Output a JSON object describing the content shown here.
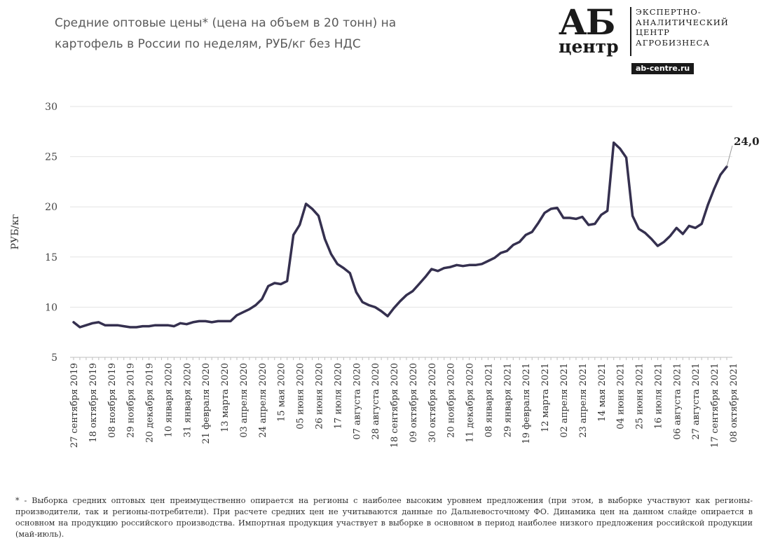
{
  "title": {
    "line1": "Средние оптовые цены* (цена на объем в 20 тонн) на",
    "line2": "картофель в России по неделям, РУБ/кг без НДС"
  },
  "logo": {
    "ab": "АБ",
    "centr": "центр",
    "line1": "ЭКСПЕРТНО-",
    "line2": "АНАЛИТИЧЕСКИЙ",
    "line3": "ЦЕНТР",
    "line4": "АГРОБИЗНЕСА",
    "url": "ab-centre.ru"
  },
  "footnote": "* - Выборка средних оптовых цен преимущественно опирается на регионы с наиболее высоким уровнем предложения (при этом, в выборке участвуют как регионы-производители, так и регионы-потребители). При расчете средних цен не учитываются данные по Дальневосточному ФО. Динамика цен на данном слайде опирается в основном на продукцию российского производства. Импортная продукция участвует в выборке в основном в период наиболее низкого предложения российской продукции (май-июль).",
  "chart_data": {
    "type": "line",
    "title": "Средние оптовые цены* (цена на объем в 20 тонн) на картофель в России по неделям, РУБ/кг без НДС",
    "xlabel": "",
    "ylabel": "РУБ/кг",
    "ylim": [
      5,
      30
    ],
    "yticks": [
      5,
      10,
      15,
      20,
      25,
      30
    ],
    "grid": true,
    "color": "#35304f",
    "tick_labels": [
      "27 сентября 2019",
      "18 октября 2019",
      "08 ноября 2019",
      "29 ноября 2019",
      "20 декабря 2019",
      "10 января 2020",
      "31 января 2020",
      "21 февраля 2020",
      "13 марта 2020",
      "03 апреля 2020",
      "24 апреля 2020",
      "15 мая 2020",
      "05 июня 2020",
      "26 июня 2020",
      "17 июля 2020",
      "07 августа 2020",
      "28 августа 2020",
      "18 сентября 2020",
      "09 октября 2020",
      "30 октября 2020",
      "20 ноября 2020",
      "11 декабря 2020",
      "08 января 2021",
      "29 января 2021",
      "19 февраля 2021",
      "12 марта 2021",
      "02 апреля 2021",
      "23 апреля 2021",
      "14 мая 2021",
      "04 июня 2021",
      "25 июня 2021",
      "16 июля 2021",
      "06 августа 2021",
      "27 августа 2021",
      "17 сентября 2021",
      "08 октября 2021"
    ],
    "tick_step": 3,
    "values": [
      8.5,
      8.0,
      8.2,
      8.4,
      8.5,
      8.2,
      8.2,
      8.2,
      8.1,
      8.0,
      8.0,
      8.1,
      8.1,
      8.2,
      8.2,
      8.2,
      8.1,
      8.4,
      8.3,
      8.5,
      8.6,
      8.6,
      8.5,
      8.6,
      8.6,
      8.6,
      9.2,
      9.5,
      9.8,
      10.2,
      10.8,
      12.1,
      12.4,
      12.3,
      12.6,
      17.2,
      18.2,
      20.3,
      19.8,
      19.1,
      16.8,
      15.3,
      14.3,
      13.9,
      13.4,
      11.5,
      10.5,
      10.2,
      10.0,
      9.6,
      9.1,
      9.9,
      10.6,
      11.2,
      11.6,
      12.3,
      13.0,
      13.8,
      13.6,
      13.9,
      14.0,
      14.2,
      14.1,
      14.2,
      14.2,
      14.3,
      14.6,
      14.9,
      15.4,
      15.6,
      16.2,
      16.5,
      17.2,
      17.5,
      18.4,
      19.4,
      19.8,
      19.9,
      18.9,
      18.9,
      18.8,
      19.0,
      18.2,
      18.3,
      19.2,
      19.6,
      26.4,
      25.8,
      24.9,
      19.1,
      17.8,
      17.4,
      16.8,
      16.1,
      16.5,
      17.1,
      17.9,
      17.3,
      18.1,
      17.9,
      18.3,
      20.2,
      21.8,
      23.2,
      24.0
    ],
    "last_value_label": "24,0"
  }
}
